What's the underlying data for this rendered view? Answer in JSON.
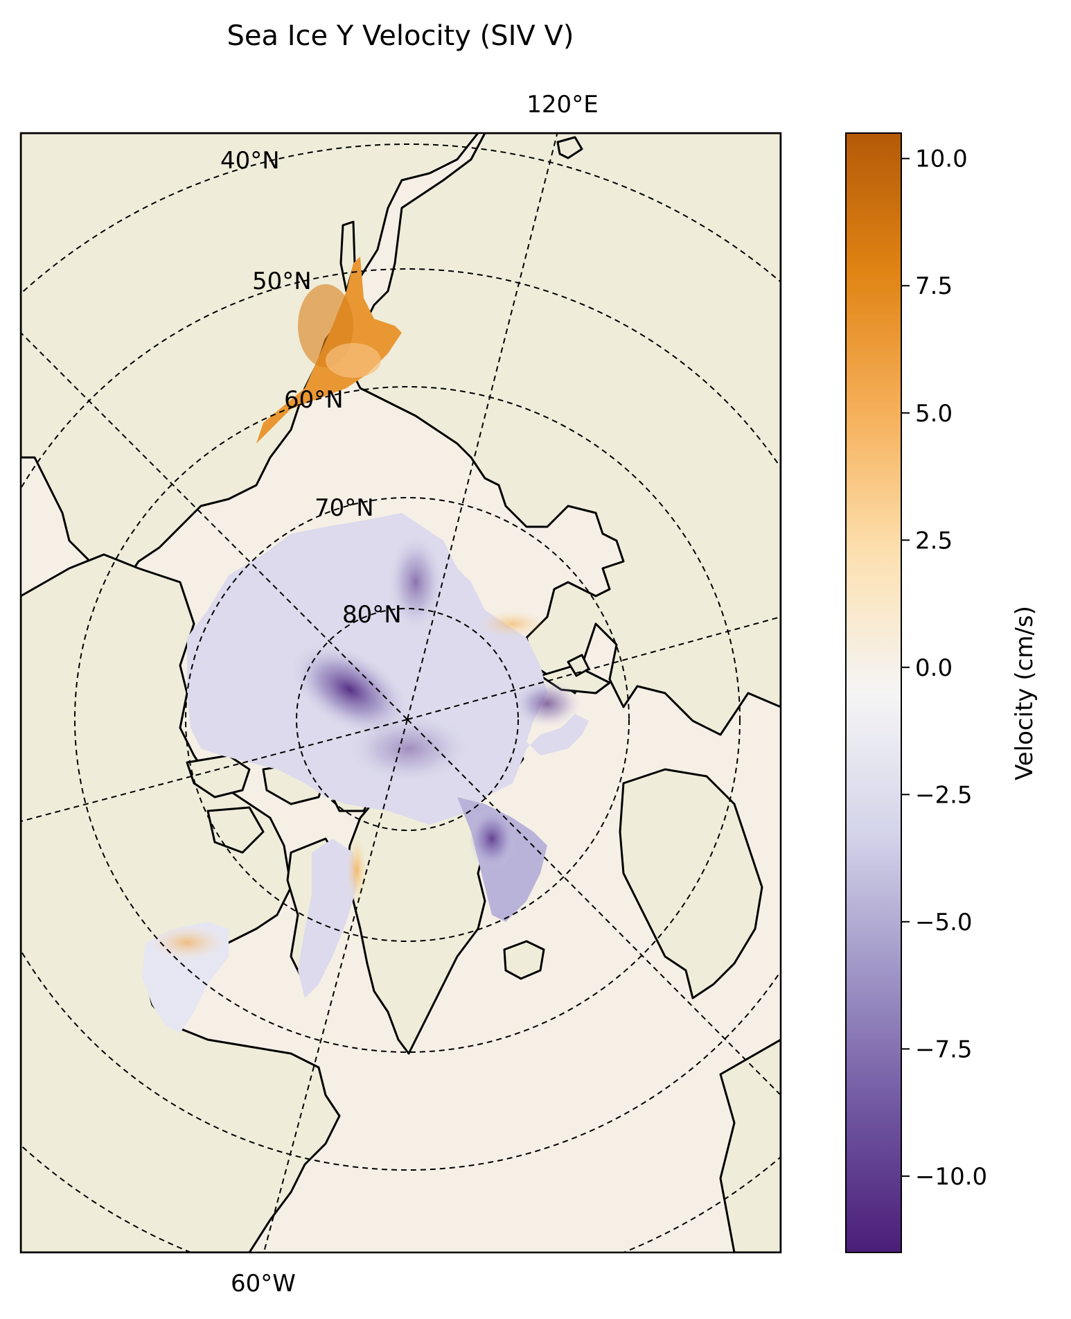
{
  "title": "Sea Ice Y Velocity (SIV V)",
  "map": {
    "projection": "north-polar-stereographic",
    "colors": {
      "ocean": "#f5efe6",
      "land": "#efedda",
      "lakes": "#9fc0e8",
      "coast": "#000000"
    },
    "latitude_labels": [
      "40°N",
      "50°N",
      "60°N",
      "70°N",
      "80°N"
    ],
    "longitude_labels": [
      "120°E",
      "60°W"
    ]
  },
  "colorbar": {
    "label": "Velocity (cm/s)",
    "range": [
      -11.5,
      10.5
    ],
    "ticks": [
      "10.0",
      "7.5",
      "5.0",
      "2.5",
      "0.0",
      "−2.5",
      "−5.0",
      "−7.5",
      "−10.0"
    ],
    "tick_values": [
      10,
      7.5,
      5,
      2.5,
      0,
      -2.5,
      -5,
      -7.5,
      -10
    ],
    "colormap": [
      "#4a1e78",
      "#6f55a0",
      "#9f95c6",
      "#d4d4ea",
      "#f5f5f5",
      "#fde0b0",
      "#f6b05a",
      "#e08414",
      "#b45a08"
    ]
  }
}
